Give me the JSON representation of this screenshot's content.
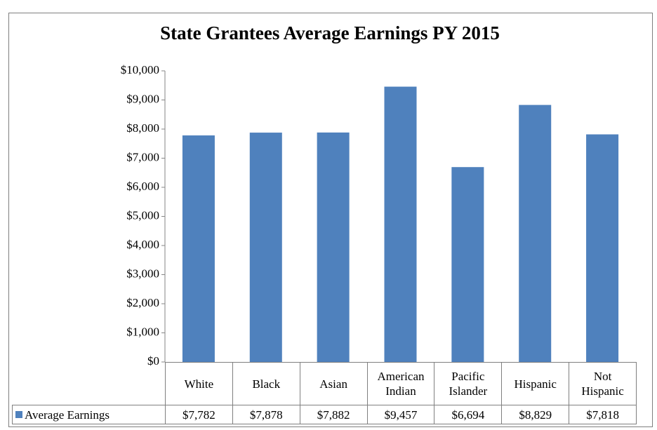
{
  "chart_data": {
    "type": "bar",
    "title": "State Grantees Average Earnings PY 2015",
    "categories": [
      "White",
      "Black",
      "Asian",
      "American Indian",
      "Pacific Islander",
      "Hispanic",
      "Not Hispanic"
    ],
    "series": [
      {
        "name": "Average Earnings",
        "color": "#4f81bd",
        "values": [
          7782,
          7878,
          7882,
          9457,
          6694,
          8829,
          7818
        ],
        "value_labels": [
          "$7,782",
          "$7,878",
          "$7,882",
          "$9,457",
          "$6,694",
          "$8,829",
          "$7,818"
        ]
      }
    ],
    "ylim": [
      0,
      10000
    ],
    "yticks": [
      {
        "value": 0,
        "label": "$0"
      },
      {
        "value": 1000,
        "label": "$1,000"
      },
      {
        "value": 2000,
        "label": "$2,000"
      },
      {
        "value": 3000,
        "label": "$3,000"
      },
      {
        "value": 4000,
        "label": "$4,000"
      },
      {
        "value": 5000,
        "label": "$5,000"
      },
      {
        "value": 6000,
        "label": "$6,000"
      },
      {
        "value": 7000,
        "label": "$7,000"
      },
      {
        "value": 8000,
        "label": "$8,000"
      },
      {
        "value": 9000,
        "label": "$9,000"
      },
      {
        "value": 10000,
        "label": "$10,000"
      }
    ],
    "grid": false
  }
}
